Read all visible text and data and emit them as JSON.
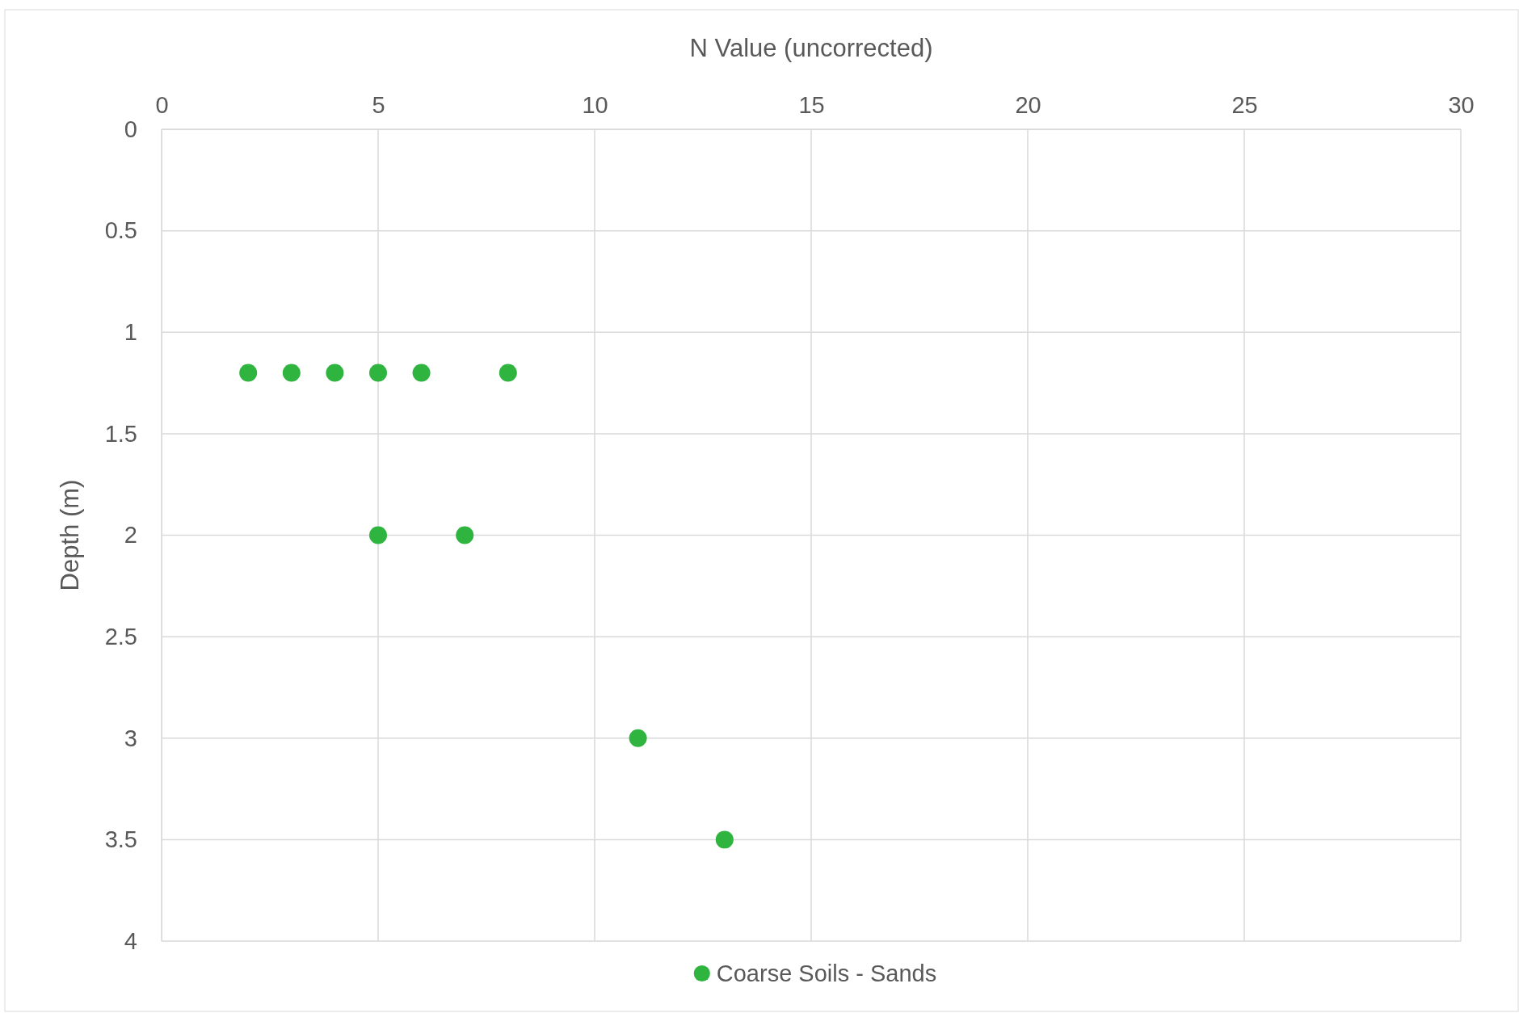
{
  "chart_data": {
    "type": "scatter",
    "xlabel": "N Value (uncorrected)",
    "ylabel": "Depth (m)",
    "x": [
      2,
      3,
      4,
      5,
      6,
      8,
      5,
      7,
      11,
      13
    ],
    "series": [
      {
        "name": "Coarse Soils - Sands",
        "color": "#2fb43f",
        "values": [
          1.2,
          1.2,
          1.2,
          1.2,
          1.2,
          1.2,
          2,
          2,
          3,
          3.5
        ]
      }
    ],
    "xlim": [
      0,
      30
    ],
    "xticks": [
      0,
      5,
      10,
      15,
      20,
      25,
      30
    ],
    "ylim": [
      4,
      0
    ],
    "yticks": [
      0,
      0.5,
      1,
      1.5,
      2,
      2.5,
      3,
      3.5,
      4
    ],
    "grid": true,
    "legend": "bottom",
    "marker": "circle"
  }
}
